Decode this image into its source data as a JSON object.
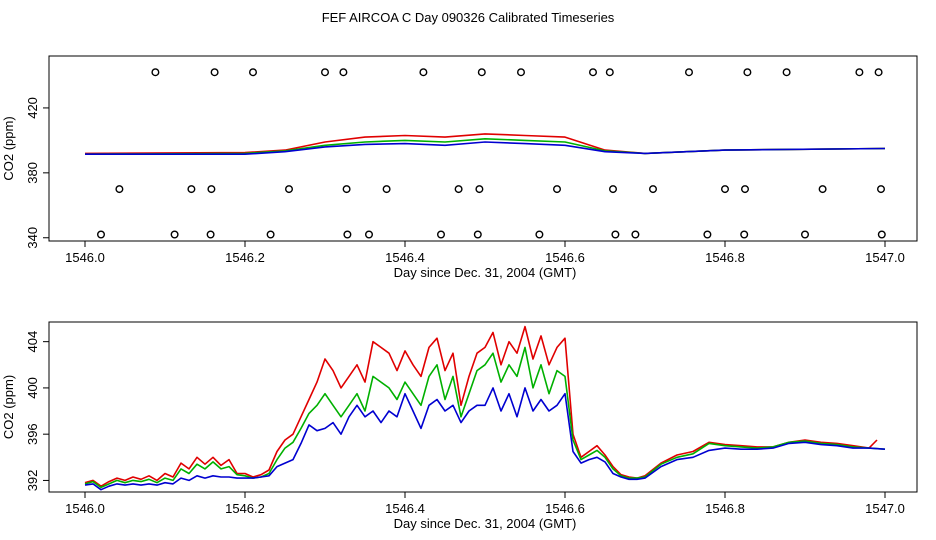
{
  "title": "FEF AIRCOA C  Day 090326  Calibrated Timeseries",
  "chart_data": [
    {
      "type": "line",
      "panel": "top",
      "xlabel": "Day since Dec. 31, 2004 (GMT)",
      "ylabel": "CO2 (ppm)",
      "xlim": [
        1546.0,
        1547.0
      ],
      "ylim": [
        338,
        452
      ],
      "xticks": [
        1546.0,
        1546.2,
        1546.4,
        1546.6,
        1546.8,
        1547.0
      ],
      "xtick_labels": [
        "1546.0",
        "1546.2",
        "1546.4",
        "1546.6",
        "1546.8",
        "1547.0"
      ],
      "yticks": [
        340,
        380,
        420
      ],
      "ytick_labels": [
        "340",
        "380",
        "420"
      ],
      "series": [
        {
          "name": "red",
          "color": "#e00000",
          "x": [
            1546.0,
            1546.2,
            1546.25,
            1546.3,
            1546.35,
            1546.4,
            1546.45,
            1546.5,
            1546.55,
            1546.6,
            1546.65,
            1546.7,
            1546.8,
            1547.0
          ],
          "values": [
            392,
            392.5,
            394,
            399,
            402,
            403,
            402,
            404,
            403,
            402,
            394,
            392,
            394,
            395
          ]
        },
        {
          "name": "green",
          "color": "#00b000",
          "x": [
            1546.0,
            1546.2,
            1546.25,
            1546.3,
            1546.35,
            1546.4,
            1546.45,
            1546.5,
            1546.55,
            1546.6,
            1546.65,
            1546.7,
            1546.8,
            1547.0
          ],
          "values": [
            391.5,
            392,
            393.5,
            397,
            399,
            400,
            399,
            401,
            400,
            399,
            393.5,
            392,
            394,
            395
          ]
        },
        {
          "name": "blue",
          "color": "#0000d0",
          "x": [
            1546.0,
            1546.2,
            1546.25,
            1546.3,
            1546.35,
            1546.4,
            1546.45,
            1546.5,
            1546.55,
            1546.6,
            1546.65,
            1546.7,
            1546.8,
            1547.0
          ],
          "values": [
            391.5,
            391.5,
            393,
            396,
            397.5,
            398,
            397,
            399,
            398,
            397,
            393,
            392,
            394,
            395
          ]
        },
        {
          "name": "open circles",
          "type": "scatter",
          "color": "#000000",
          "x": [
            1546.088,
            1546.162,
            1546.21,
            1546.3,
            1546.323,
            1546.423,
            1546.496,
            1546.545,
            1546.635,
            1546.656,
            1546.755,
            1546.828,
            1546.877,
            1546.968,
            1546.992,
            1546.043,
            1546.133,
            1546.158,
            1546.255,
            1546.327,
            1546.377,
            1546.467,
            1546.493,
            1546.59,
            1546.66,
            1546.71,
            1546.8,
            1546.825,
            1546.922,
            1546.995,
            1546.02,
            1546.112,
            1546.157,
            1546.232,
            1546.328,
            1546.355,
            1546.445,
            1546.491,
            1546.568,
            1546.663,
            1546.688,
            1546.778,
            1546.824,
            1546.9,
            1546.996
          ],
          "values": [
            442,
            442,
            442,
            442,
            442,
            442,
            442,
            442,
            442,
            442,
            442,
            442,
            442,
            442,
            442,
            370,
            370,
            370,
            370,
            370,
            370,
            370,
            370,
            370,
            370,
            370,
            370,
            370,
            370,
            370,
            342,
            342,
            342,
            342,
            342,
            342,
            342,
            342,
            342,
            342,
            342,
            342,
            342,
            342,
            342
          ]
        }
      ]
    },
    {
      "type": "line",
      "panel": "bottom",
      "xlabel": "Day since Dec. 31, 2004 (GMT)",
      "ylabel": "CO2 (ppm)",
      "xlim": [
        1546.0,
        1547.0
      ],
      "ylim": [
        391.0,
        405.7
      ],
      "xticks": [
        1546.0,
        1546.2,
        1546.4,
        1546.6,
        1546.8,
        1547.0
      ],
      "xtick_labels": [
        "1546.0",
        "1546.2",
        "1546.4",
        "1546.6",
        "1546.8",
        "1547.0"
      ],
      "yticks": [
        392,
        396,
        400,
        404
      ],
      "ytick_labels": [
        "392",
        "396",
        "400",
        "404"
      ],
      "series": [
        {
          "name": "red",
          "color": "#e00000",
          "x": [
            1546.0,
            1546.01,
            1546.02,
            1546.03,
            1546.04,
            1546.05,
            1546.06,
            1546.07,
            1546.08,
            1546.09,
            1546.1,
            1546.11,
            1546.12,
            1546.13,
            1546.14,
            1546.15,
            1546.16,
            1546.17,
            1546.18,
            1546.19,
            1546.2,
            1546.21,
            1546.22,
            1546.23,
            1546.24,
            1546.25,
            1546.26,
            1546.27,
            1546.28,
            1546.29,
            1546.3,
            1546.31,
            1546.32,
            1546.33,
            1546.34,
            1546.35,
            1546.36,
            1546.37,
            1546.38,
            1546.39,
            1546.4,
            1546.41,
            1546.42,
            1546.43,
            1546.44,
            1546.45,
            1546.46,
            1546.47,
            1546.48,
            1546.49,
            1546.5,
            1546.51,
            1546.52,
            1546.53,
            1546.54,
            1546.55,
            1546.56,
            1546.57,
            1546.58,
            1546.59,
            1546.6,
            1546.61,
            1546.62,
            1546.63,
            1546.64,
            1546.65,
            1546.66,
            1546.67,
            1546.68,
            1546.69,
            1546.7,
            1546.72,
            1546.74,
            1546.76,
            1546.78,
            1546.8,
            1546.82,
            1546.84,
            1546.86,
            1546.88,
            1546.9,
            1546.92,
            1546.94,
            1546.96,
            1546.98,
            1546.99
          ],
          "values": [
            391.8,
            392.0,
            391.5,
            391.9,
            392.2,
            392.0,
            392.3,
            392.1,
            392.4,
            392.0,
            392.6,
            392.3,
            393.5,
            393.0,
            394.0,
            393.4,
            394.0,
            393.3,
            393.8,
            392.6,
            392.6,
            392.3,
            392.5,
            392.9,
            394.5,
            395.5,
            396.0,
            397.5,
            399.0,
            400.5,
            402.5,
            401.5,
            400.0,
            401.0,
            402.0,
            400.5,
            404.0,
            403.5,
            403.0,
            401.5,
            403.2,
            402.0,
            401.0,
            403.5,
            404.3,
            401.5,
            403.0,
            398.5,
            401.0,
            403.0,
            403.5,
            404.8,
            402.0,
            404.0,
            403.0,
            405.3,
            402.5,
            404.5,
            402.0,
            403.5,
            404.3,
            396.0,
            394.0,
            394.5,
            395.0,
            394.2,
            393.2,
            392.5,
            392.3,
            392.2,
            392.4,
            393.5,
            394.2,
            394.5,
            395.3,
            395.1,
            395.0,
            394.9,
            394.9,
            395.3,
            395.5,
            395.3,
            395.2,
            395.0,
            394.8,
            395.5
          ]
        },
        {
          "name": "green",
          "color": "#00b000",
          "x": [
            1546.0,
            1546.01,
            1546.02,
            1546.03,
            1546.04,
            1546.05,
            1546.06,
            1546.07,
            1546.08,
            1546.09,
            1546.1,
            1546.11,
            1546.12,
            1546.13,
            1546.14,
            1546.15,
            1546.16,
            1546.17,
            1546.18,
            1546.19,
            1546.2,
            1546.21,
            1546.22,
            1546.23,
            1546.24,
            1546.25,
            1546.26,
            1546.27,
            1546.28,
            1546.29,
            1546.3,
            1546.31,
            1546.32,
            1546.33,
            1546.34,
            1546.35,
            1546.36,
            1546.37,
            1546.38,
            1546.39,
            1546.4,
            1546.41,
            1546.42,
            1546.43,
            1546.44,
            1546.45,
            1546.46,
            1546.47,
            1546.48,
            1546.49,
            1546.5,
            1546.51,
            1546.52,
            1546.53,
            1546.54,
            1546.55,
            1546.56,
            1546.57,
            1546.58,
            1546.59,
            1546.6,
            1546.61,
            1546.62,
            1546.63,
            1546.64,
            1546.65,
            1546.66,
            1546.67,
            1546.68,
            1546.69,
            1546.7,
            1546.72,
            1546.74,
            1546.76,
            1546.78,
            1546.8,
            1546.82,
            1546.84,
            1546.86,
            1546.88,
            1546.9,
            1546.92,
            1546.94,
            1546.96,
            1546.98,
            1547.0
          ],
          "values": [
            391.7,
            391.9,
            391.4,
            391.7,
            392.0,
            391.8,
            392.0,
            391.9,
            392.1,
            391.8,
            392.2,
            392.0,
            393.0,
            392.6,
            393.4,
            393.0,
            393.6,
            393.0,
            393.2,
            392.5,
            392.4,
            392.2,
            392.3,
            392.6,
            393.8,
            394.8,
            395.3,
            396.5,
            397.8,
            398.5,
            399.5,
            398.5,
            397.5,
            398.5,
            399.5,
            398.0,
            401.0,
            400.5,
            400.0,
            399.0,
            400.5,
            399.5,
            398.5,
            401.0,
            402.0,
            399.0,
            401.0,
            397.5,
            399.5,
            401.5,
            402.0,
            403.0,
            400.5,
            402.0,
            401.0,
            403.5,
            400.0,
            402.0,
            399.5,
            401.5,
            401.0,
            395.5,
            393.8,
            394.2,
            394.6,
            394.0,
            393.0,
            392.4,
            392.2,
            392.2,
            392.3,
            393.4,
            394.0,
            394.3,
            395.2,
            395.0,
            394.9,
            394.8,
            394.9,
            395.3,
            395.4,
            395.2,
            395.1,
            394.9,
            394.8,
            394.7
          ]
        },
        {
          "name": "blue",
          "color": "#0000d0",
          "x": [
            1546.0,
            1546.01,
            1546.02,
            1546.03,
            1546.04,
            1546.05,
            1546.06,
            1546.07,
            1546.08,
            1546.09,
            1546.1,
            1546.11,
            1546.12,
            1546.13,
            1546.14,
            1546.15,
            1546.16,
            1546.17,
            1546.18,
            1546.19,
            1546.2,
            1546.21,
            1546.22,
            1546.23,
            1546.24,
            1546.25,
            1546.26,
            1546.27,
            1546.28,
            1546.29,
            1546.3,
            1546.31,
            1546.32,
            1546.33,
            1546.34,
            1546.35,
            1546.36,
            1546.37,
            1546.38,
            1546.39,
            1546.4,
            1546.41,
            1546.42,
            1546.43,
            1546.44,
            1546.45,
            1546.46,
            1546.47,
            1546.48,
            1546.49,
            1546.5,
            1546.51,
            1546.52,
            1546.53,
            1546.54,
            1546.55,
            1546.56,
            1546.57,
            1546.58,
            1546.59,
            1546.6,
            1546.61,
            1546.62,
            1546.63,
            1546.64,
            1546.65,
            1546.66,
            1546.67,
            1546.68,
            1546.69,
            1546.7,
            1546.72,
            1546.74,
            1546.76,
            1546.78,
            1546.8,
            1546.82,
            1546.84,
            1546.86,
            1546.88,
            1546.9,
            1546.92,
            1546.94,
            1546.96,
            1546.98,
            1547.0
          ],
          "values": [
            391.6,
            391.7,
            391.2,
            391.5,
            391.7,
            391.6,
            391.7,
            391.6,
            391.7,
            391.6,
            391.8,
            391.7,
            392.2,
            392.0,
            392.4,
            392.2,
            392.4,
            392.3,
            392.3,
            392.2,
            392.2,
            392.2,
            392.3,
            392.4,
            393.2,
            393.5,
            393.8,
            395.2,
            396.8,
            396.3,
            396.5,
            397.0,
            396.0,
            397.5,
            398.5,
            397.5,
            398.0,
            397.0,
            398.0,
            397.5,
            399.5,
            398.0,
            396.5,
            398.5,
            399.0,
            398.0,
            398.5,
            397.0,
            398.0,
            398.5,
            398.5,
            400.0,
            398.0,
            399.5,
            397.5,
            400.0,
            398.0,
            399.0,
            398.0,
            398.5,
            399.5,
            394.5,
            393.5,
            393.8,
            394.0,
            393.6,
            392.6,
            392.3,
            392.1,
            392.1,
            392.2,
            393.2,
            393.8,
            394.0,
            394.6,
            394.8,
            394.7,
            394.7,
            394.8,
            395.2,
            395.3,
            395.1,
            395.0,
            394.8,
            394.8,
            394.7
          ]
        }
      ]
    }
  ]
}
